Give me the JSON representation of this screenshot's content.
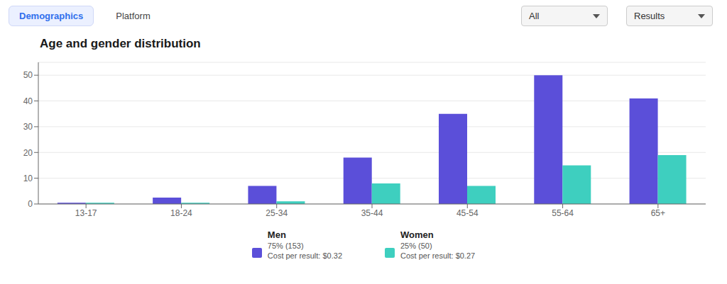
{
  "chart_data": {
    "type": "bar",
    "title": "Age and gender distribution",
    "annotations": [
      "Demographics",
      "Platform",
      "All",
      "Results"
    ],
    "categories": [
      "13-17",
      "18-24",
      "25-34",
      "35-44",
      "45-54",
      "55-64",
      "65+"
    ],
    "series": [
      {
        "name": "Men",
        "color": "#5B4FD9",
        "values": [
          0.5,
          2.5,
          7,
          18,
          35,
          50,
          41
        ],
        "annotations": [
          "75% (153)",
          "Cost per result: $0.32"
        ]
      },
      {
        "name": "Women",
        "color": "#3ECFBF",
        "values": [
          0.5,
          0.5,
          1,
          8,
          7,
          15,
          19
        ],
        "annotations": [
          "25% (50)",
          "Cost per result: $0.27"
        ]
      }
    ],
    "ylim": [
      0,
      55
    ],
    "yticks": [
      0,
      10,
      20,
      30,
      40,
      50
    ],
    "grid": true,
    "legend": "bottom"
  }
}
